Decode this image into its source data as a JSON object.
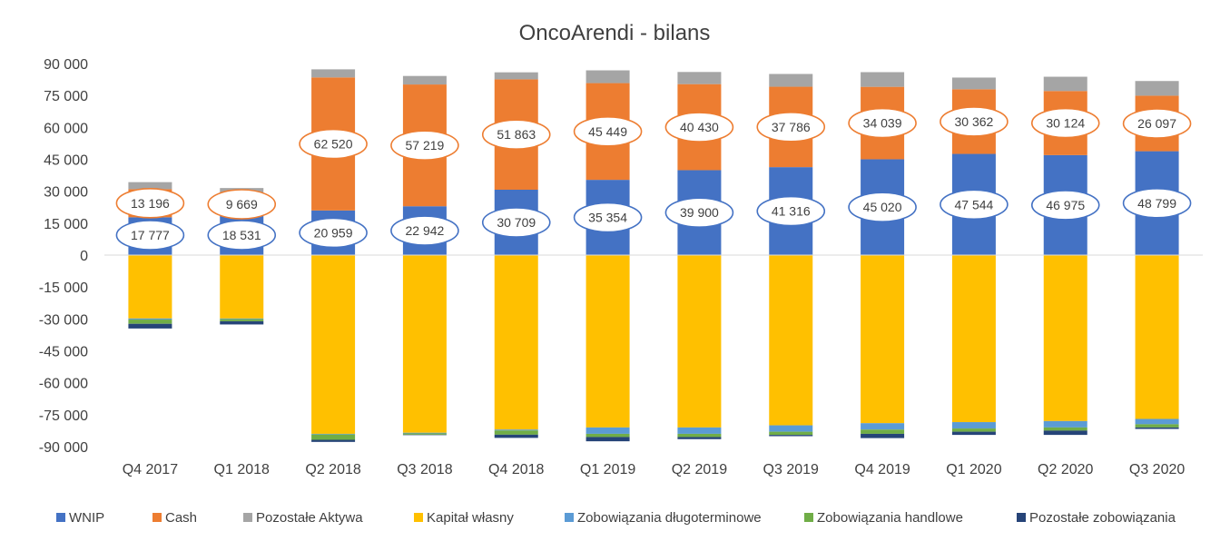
{
  "chart_data": {
    "type": "bar",
    "stacked": true,
    "title": "OncoArendi - bilans",
    "xlabel": "",
    "ylabel": "",
    "ylim": [
      -90000,
      90000
    ],
    "yticks": [
      90000,
      75000,
      60000,
      45000,
      30000,
      15000,
      0,
      -15000,
      -30000,
      -45000,
      -60000,
      -75000,
      -90000
    ],
    "ytick_labels": [
      "90 000",
      "75 000",
      "60 000",
      "45 000",
      "30 000",
      "15 000",
      "0",
      "-15 000",
      "-30 000",
      "-45 000",
      "-60 000",
      "-75 000",
      "-90 000"
    ],
    "categories": [
      "Q4 2017",
      "Q1 2018",
      "Q2 2018",
      "Q3 2018",
      "Q4 2018",
      "Q1 2019",
      "Q2 2019",
      "Q3 2019",
      "Q4 2019",
      "Q1 2020",
      "Q2 2020",
      "Q3 2020"
    ],
    "series": [
      {
        "name": "WNIP",
        "color": "#4472c4",
        "values": [
          17777,
          18531,
          20959,
          22942,
          30709,
          35354,
          39900,
          41316,
          45020,
          47544,
          46975,
          48799
        ]
      },
      {
        "name": "Cash",
        "color": "#ed7d31",
        "values": [
          13196,
          9669,
          62520,
          57219,
          51863,
          45449,
          40430,
          37786,
          34039,
          30362,
          30124,
          26097
        ]
      },
      {
        "name": "Pozostałe Aktywa",
        "color": "#a5a5a5",
        "values": [
          3300,
          3300,
          3800,
          4000,
          3300,
          6000,
          5700,
          6000,
          6900,
          5500,
          6700,
          6900
        ]
      },
      {
        "name": "Kapitał własny",
        "color": "#ffc000",
        "values": [
          -29800,
          -29800,
          -84000,
          -83500,
          -82000,
          -81000,
          -81000,
          -80000,
          -79000,
          -78500,
          -78000,
          -77000
        ]
      },
      {
        "name": "Zobowiązania długoterminowe",
        "color": "#5b9bd5",
        "values": [
          -500,
          -300,
          -300,
          -300,
          -400,
          -3000,
          -3000,
          -3000,
          -3000,
          -3000,
          -3000,
          -2500
        ]
      },
      {
        "name": "Zobowiązania handlowe",
        "color": "#70ad47",
        "values": [
          -2000,
          -1000,
          -2500,
          -600,
          -2000,
          -1500,
          -1500,
          -1500,
          -2000,
          -1500,
          -1500,
          -1500
        ]
      },
      {
        "name": "Pozostałe zobowiązania",
        "color": "#264478",
        "values": [
          -2200,
          -1500,
          -1000,
          -200,
          -1500,
          -2000,
          -1000,
          -600,
          -2000,
          -1500,
          -2000,
          -700
        ]
      }
    ],
    "data_labels": {
      "WNIP": [
        "17 777",
        "18 531",
        "20 959",
        "22 942",
        "30 709",
        "35 354",
        "39 900",
        "41 316",
        "45 020",
        "47 544",
        "46 975",
        "48 799"
      ],
      "Cash": [
        "13 196",
        "9 669",
        "62 520",
        "57 219",
        "51 863",
        "45 449",
        "40 430",
        "37 786",
        "34 039",
        "30 362",
        "30 124",
        "26 097"
      ]
    },
    "label_colors": {
      "WNIP": "#4472c4",
      "Cash": "#ed7d31"
    },
    "legend_position": "bottom",
    "grid": false
  }
}
